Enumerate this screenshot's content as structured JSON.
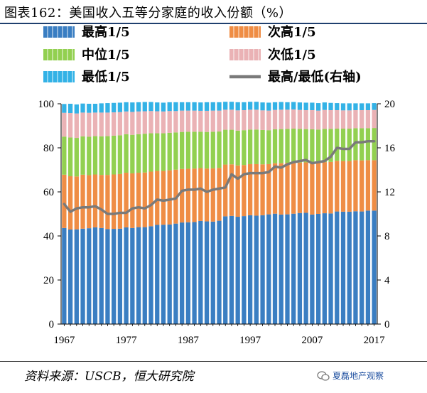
{
  "header": {
    "title": "图表162：美国收入五等分家庭的收入份额（%）"
  },
  "footer": {
    "source": "资料来源：USCB，恒大研究院",
    "watermark": "夏磊地产观察"
  },
  "colors": {
    "top": "#3a7ec2",
    "second": "#ef8d45",
    "middle": "#92d050",
    "fourth": "#eab2b5",
    "bottom": "#33b2e6",
    "ratio": "#7a7a7a",
    "stripe": "#ffffff",
    "title_rule": "#1f3f6e"
  },
  "chart_data": {
    "type": "bar",
    "stacked": true,
    "title": "图表162：美国收入五等分家庭的收入份额（%）",
    "years": [
      1967,
      1968,
      1969,
      1970,
      1971,
      1972,
      1973,
      1974,
      1975,
      1976,
      1977,
      1978,
      1979,
      1980,
      1981,
      1982,
      1983,
      1984,
      1985,
      1986,
      1987,
      1988,
      1989,
      1990,
      1991,
      1992,
      1993,
      1994,
      1995,
      1996,
      1997,
      1998,
      1999,
      2000,
      2001,
      2002,
      2003,
      2004,
      2005,
      2006,
      2007,
      2008,
      2009,
      2010,
      2011,
      2012,
      2013,
      2014,
      2015,
      2016,
      2017
    ],
    "x_tick_labels": [
      "1967",
      "1977",
      "1987",
      "1997",
      "2007",
      "2017"
    ],
    "y_left": {
      "lim": [
        0,
        100
      ],
      "ticks": [
        0,
        20,
        40,
        60,
        80,
        100
      ]
    },
    "y_right": {
      "lim": [
        0,
        20
      ],
      "ticks": [
        0,
        4,
        8,
        12,
        16,
        20
      ]
    },
    "legend": [
      {
        "key": "top",
        "label": "最高1/5",
        "kind": "bar"
      },
      {
        "key": "second",
        "label": "次高1/5",
        "kind": "bar"
      },
      {
        "key": "middle",
        "label": "中位1/5",
        "kind": "bar"
      },
      {
        "key": "fourth",
        "label": "次低1/5",
        "kind": "bar"
      },
      {
        "key": "bottom",
        "label": "最低1/5",
        "kind": "bar"
      },
      {
        "key": "ratio",
        "label": "最高/最低(右轴)",
        "kind": "line"
      }
    ],
    "series": [
      {
        "key": "top",
        "name": "最高1/5",
        "axis": "left",
        "values": [
          43.6,
          42.9,
          43.0,
          43.3,
          43.5,
          43.9,
          43.6,
          43.1,
          43.2,
          43.3,
          43.9,
          43.6,
          44.0,
          44.0,
          44.4,
          45.0,
          45.1,
          45.2,
          45.6,
          46.1,
          46.2,
          46.3,
          46.8,
          46.6,
          46.5,
          46.9,
          48.9,
          49.1,
          48.7,
          49.0,
          49.4,
          49.2,
          49.4,
          49.8,
          50.1,
          49.7,
          49.8,
          50.1,
          50.4,
          50.5,
          49.7,
          50.0,
          50.3,
          50.2,
          51.1,
          51.0,
          51.0,
          51.2,
          51.1,
          51.5,
          51.5
        ]
      },
      {
        "key": "second",
        "name": "次高1/5",
        "axis": "left",
        "values": [
          24.2,
          24.2,
          24.0,
          24.5,
          24.1,
          24.0,
          24.1,
          24.6,
          24.7,
          24.8,
          24.8,
          24.8,
          24.7,
          24.8,
          24.8,
          24.5,
          24.4,
          24.6,
          24.5,
          24.3,
          24.3,
          24.3,
          24.0,
          24.0,
          24.2,
          24.0,
          23.5,
          23.4,
          23.3,
          23.2,
          23.2,
          23.4,
          23.1,
          22.8,
          22.9,
          23.3,
          23.4,
          23.2,
          22.9,
          22.9,
          23.4,
          23.1,
          23.2,
          23.4,
          23.0,
          23.0,
          23.0,
          23.2,
          23.2,
          22.9,
          22.9
        ]
      },
      {
        "key": "middle",
        "name": "中位1/5",
        "axis": "left",
        "values": [
          17.3,
          17.6,
          17.5,
          17.4,
          17.4,
          17.4,
          17.5,
          17.6,
          17.6,
          17.6,
          17.5,
          17.5,
          17.5,
          17.6,
          17.4,
          17.1,
          17.1,
          17.0,
          16.9,
          16.8,
          16.8,
          16.7,
          16.5,
          16.6,
          16.6,
          16.5,
          15.8,
          15.7,
          15.8,
          15.8,
          15.7,
          15.7,
          15.6,
          15.4,
          15.4,
          15.5,
          15.4,
          15.4,
          15.3,
          15.1,
          15.3,
          15.2,
          15.1,
          15.0,
          14.6,
          14.7,
          14.7,
          14.5,
          14.6,
          14.5,
          14.6
        ]
      },
      {
        "key": "fourth",
        "name": "次低1/5",
        "axis": "left",
        "values": [
          10.8,
          11.1,
          11.1,
          10.8,
          10.9,
          10.7,
          10.8,
          10.7,
          10.6,
          10.5,
          10.3,
          10.4,
          10.3,
          10.2,
          10.1,
          10.0,
          9.9,
          9.9,
          9.7,
          9.7,
          9.6,
          9.6,
          9.5,
          9.6,
          9.6,
          9.5,
          9.1,
          9.1,
          9.2,
          9.1,
          9.0,
          9.0,
          8.9,
          8.9,
          8.8,
          8.8,
          8.7,
          8.7,
          8.6,
          8.6,
          8.7,
          8.6,
          8.6,
          8.5,
          8.4,
          8.3,
          8.3,
          8.2,
          8.2,
          8.2,
          8.2
        ]
      },
      {
        "key": "bottom",
        "name": "最低1/5",
        "axis": "left",
        "values": [
          4.0,
          4.2,
          4.1,
          4.1,
          4.1,
          4.0,
          4.2,
          4.3,
          4.3,
          4.3,
          4.2,
          4.3,
          4.2,
          4.2,
          4.1,
          4.0,
          4.0,
          4.0,
          4.0,
          3.8,
          3.8,
          3.8,
          3.8,
          3.9,
          3.8,
          3.8,
          3.6,
          3.6,
          3.7,
          3.6,
          3.6,
          3.6,
          3.6,
          3.6,
          3.5,
          3.5,
          3.4,
          3.4,
          3.4,
          3.4,
          3.4,
          3.4,
          3.4,
          3.3,
          3.2,
          3.2,
          3.2,
          3.1,
          3.1,
          3.1,
          3.1
        ]
      },
      {
        "key": "ratio",
        "name": "最高/最低(右轴)",
        "axis": "right",
        "type": "line",
        "values": [
          10.9,
          10.2,
          10.5,
          10.6,
          10.6,
          10.7,
          10.4,
          10.0,
          10.0,
          10.1,
          10.1,
          10.5,
          10.6,
          10.5,
          10.8,
          11.3,
          11.2,
          11.3,
          11.4,
          12.1,
          12.2,
          12.2,
          12.3,
          12.0,
          12.2,
          12.3,
          12.4,
          13.6,
          13.2,
          13.6,
          13.7,
          13.7,
          13.7,
          13.8,
          14.3,
          14.2,
          14.5,
          14.7,
          14.8,
          14.9,
          14.6,
          14.7,
          14.8,
          15.2,
          16.0,
          15.9,
          15.9,
          16.5,
          16.5,
          16.6,
          16.6
        ]
      }
    ]
  }
}
